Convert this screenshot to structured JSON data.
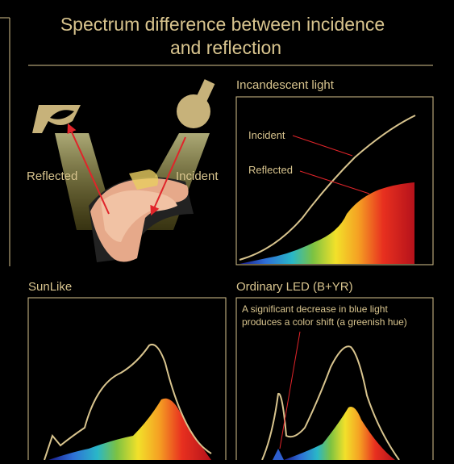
{
  "header": {
    "title_lines": [
      "Spectrum difference between incidence",
      "and reflection"
    ]
  },
  "illustration": {
    "reflected_label": "Reflected",
    "incident_label": "Incident"
  },
  "panels": [
    {
      "title": "Incandescent light",
      "labels": [
        "Incident",
        "Reflected"
      ]
    },
    {
      "title": "SunLike"
    },
    {
      "title": "Ordinary LED (B+YR)",
      "annotation_lines": [
        "A significant decrease in blue light",
        "produces a color shift (a greenish hue)"
      ]
    }
  ]
}
